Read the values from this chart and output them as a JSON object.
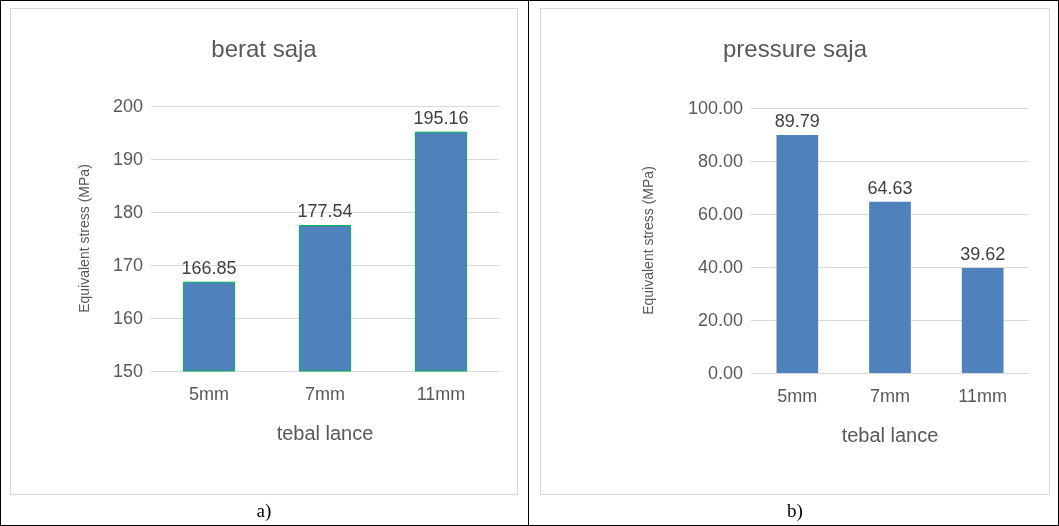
{
  "chart_data": [
    {
      "type": "bar",
      "title": "berat saja",
      "xlabel": "tebal lance",
      "ylabel": "Equivalent stress (MPa)",
      "categories": [
        "5mm",
        "7mm",
        "11mm"
      ],
      "values": [
        166.85,
        177.54,
        195.16
      ],
      "color": "#4f81bd",
      "ylim": [
        150,
        200
      ],
      "yticks": [
        150,
        160,
        170,
        180,
        190,
        200
      ],
      "grid": "y",
      "data_labels": true,
      "annotations": [
        "a)"
      ]
    },
    {
      "type": "bar",
      "title": "pressure saja",
      "xlabel": "tebal lance",
      "ylabel": "Equivalent stress (MPa)",
      "categories": [
        "5mm",
        "7mm",
        "11mm"
      ],
      "values": [
        89.79,
        64.63,
        39.62
      ],
      "color": "#4f81bd",
      "ylim": [
        0,
        100
      ],
      "yticks": [
        {
          "value": 0,
          "label": "0.00"
        },
        {
          "value": 20,
          "label": "20.00"
        },
        {
          "value": 40,
          "label": "40.00"
        },
        {
          "value": 60,
          "label": "60.00"
        },
        {
          "value": 80,
          "label": "80.00"
        },
        {
          "value": 100,
          "label": "100.00"
        }
      ],
      "grid": "y",
      "data_labels": true,
      "annotations": [
        "b)"
      ]
    }
  ]
}
